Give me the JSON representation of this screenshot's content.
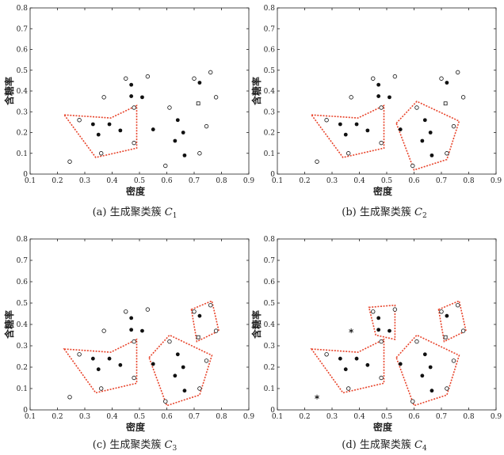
{
  "chart_data": [
    {
      "type": "scatter",
      "caption_prefix": "(a) 生成聚类簇",
      "caption_var": "C",
      "caption_sub": "1",
      "xlabel": "密度",
      "ylabel": "含糖率",
      "xlim": [
        0.1,
        0.9
      ],
      "ylim": [
        0,
        0.8
      ],
      "xticks": [
        "0.1",
        "0.2",
        "0.3",
        "0.4",
        "0.5",
        "0.6",
        "0.7",
        "0.8",
        "0.9"
      ],
      "yticks": [
        "0",
        "0.1",
        "0.2",
        "0.3",
        "0.4",
        "0.5",
        "0.6",
        "0.7",
        "0.8"
      ],
      "grid": false,
      "open_points": [
        [
          0.245,
          0.06
        ],
        [
          0.28,
          0.26
        ],
        [
          0.36,
          0.1
        ],
        [
          0.37,
          0.37
        ],
        [
          0.45,
          0.46
        ],
        [
          0.48,
          0.15
        ],
        [
          0.48,
          0.32
        ],
        [
          0.53,
          0.47
        ],
        [
          0.595,
          0.04
        ],
        [
          0.61,
          0.32
        ],
        [
          0.7,
          0.46
        ],
        [
          0.72,
          0.1
        ],
        [
          0.745,
          0.23
        ],
        [
          0.76,
          0.49
        ],
        [
          0.78,
          0.37
        ]
      ],
      "filled_points": [
        [
          0.33,
          0.24
        ],
        [
          0.35,
          0.19
        ],
        [
          0.39,
          0.24
        ],
        [
          0.43,
          0.21
        ],
        [
          0.47,
          0.43
        ],
        [
          0.47,
          0.375
        ],
        [
          0.51,
          0.37
        ],
        [
          0.55,
          0.215
        ],
        [
          0.64,
          0.26
        ],
        [
          0.63,
          0.16
        ],
        [
          0.66,
          0.2
        ],
        [
          0.665,
          0.09
        ],
        [
          0.72,
          0.44
        ]
      ],
      "square_points": [
        [
          0.715,
          0.34
        ]
      ],
      "star_points": [],
      "clusters": [
        [
          [
            0.225,
            0.285
          ],
          [
            0.395,
            0.27
          ],
          [
            0.49,
            0.33
          ],
          [
            0.49,
            0.125
          ],
          [
            0.34,
            0.08
          ]
        ]
      ]
    },
    {
      "type": "scatter",
      "caption_prefix": "(b) 生成聚类簇",
      "caption_var": "C",
      "caption_sub": "2",
      "xlabel": "密度",
      "ylabel": "含糖率",
      "xlim": [
        0.1,
        0.9
      ],
      "ylim": [
        0,
        0.8
      ],
      "xticks": [
        "0.1",
        "0.2",
        "0.3",
        "0.4",
        "0.5",
        "0.6",
        "0.7",
        "0.8",
        "0.9"
      ],
      "yticks": [
        "0",
        "0.1",
        "0.2",
        "0.3",
        "0.4",
        "0.5",
        "0.6",
        "0.7",
        "0.8"
      ],
      "grid": false,
      "open_points": [
        [
          0.245,
          0.06
        ],
        [
          0.28,
          0.26
        ],
        [
          0.36,
          0.1
        ],
        [
          0.37,
          0.37
        ],
        [
          0.45,
          0.46
        ],
        [
          0.48,
          0.15
        ],
        [
          0.48,
          0.32
        ],
        [
          0.53,
          0.47
        ],
        [
          0.595,
          0.04
        ],
        [
          0.61,
          0.32
        ],
        [
          0.7,
          0.46
        ],
        [
          0.72,
          0.1
        ],
        [
          0.745,
          0.23
        ],
        [
          0.76,
          0.49
        ],
        [
          0.78,
          0.37
        ]
      ],
      "filled_points": [
        [
          0.33,
          0.24
        ],
        [
          0.35,
          0.19
        ],
        [
          0.39,
          0.24
        ],
        [
          0.43,
          0.21
        ],
        [
          0.47,
          0.43
        ],
        [
          0.47,
          0.375
        ],
        [
          0.51,
          0.37
        ],
        [
          0.55,
          0.215
        ],
        [
          0.64,
          0.26
        ],
        [
          0.63,
          0.16
        ],
        [
          0.66,
          0.2
        ],
        [
          0.665,
          0.09
        ],
        [
          0.72,
          0.44
        ]
      ],
      "square_points": [
        [
          0.715,
          0.34
        ]
      ],
      "star_points": [],
      "clusters": [
        [
          [
            0.225,
            0.285
          ],
          [
            0.395,
            0.27
          ],
          [
            0.49,
            0.33
          ],
          [
            0.49,
            0.125
          ],
          [
            0.34,
            0.08
          ]
        ],
        [
          [
            0.535,
            0.245
          ],
          [
            0.61,
            0.35
          ],
          [
            0.765,
            0.255
          ],
          [
            0.72,
            0.07
          ],
          [
            0.6,
            0.02
          ]
        ]
      ]
    },
    {
      "type": "scatter",
      "caption_prefix": "(c) 生成聚类簇",
      "caption_var": "C",
      "caption_sub": "3",
      "xlabel": "密度",
      "ylabel": "含糖率",
      "xlim": [
        0.1,
        0.9
      ],
      "ylim": [
        0,
        0.8
      ],
      "xticks": [
        "0.1",
        "0.2",
        "0.3",
        "0.4",
        "0.5",
        "0.6",
        "0.7",
        "0.8",
        "0.9"
      ],
      "yticks": [
        "0",
        "0.1",
        "0.2",
        "0.3",
        "0.4",
        "0.5",
        "0.6",
        "0.7",
        "0.8"
      ],
      "grid": false,
      "open_points": [
        [
          0.245,
          0.06
        ],
        [
          0.28,
          0.26
        ],
        [
          0.36,
          0.1
        ],
        [
          0.37,
          0.37
        ],
        [
          0.45,
          0.46
        ],
        [
          0.48,
          0.15
        ],
        [
          0.48,
          0.32
        ],
        [
          0.53,
          0.47
        ],
        [
          0.595,
          0.04
        ],
        [
          0.61,
          0.32
        ],
        [
          0.7,
          0.46
        ],
        [
          0.72,
          0.1
        ],
        [
          0.745,
          0.23
        ],
        [
          0.76,
          0.49
        ],
        [
          0.78,
          0.37
        ]
      ],
      "filled_points": [
        [
          0.33,
          0.24
        ],
        [
          0.35,
          0.19
        ],
        [
          0.39,
          0.24
        ],
        [
          0.43,
          0.21
        ],
        [
          0.47,
          0.43
        ],
        [
          0.47,
          0.375
        ],
        [
          0.51,
          0.37
        ],
        [
          0.55,
          0.215
        ],
        [
          0.64,
          0.26
        ],
        [
          0.63,
          0.16
        ],
        [
          0.66,
          0.2
        ],
        [
          0.665,
          0.09
        ],
        [
          0.72,
          0.44
        ]
      ],
      "square_points": [
        [
          0.715,
          0.34
        ]
      ],
      "star_points": [],
      "clusters": [
        [
          [
            0.225,
            0.285
          ],
          [
            0.395,
            0.27
          ],
          [
            0.49,
            0.33
          ],
          [
            0.49,
            0.125
          ],
          [
            0.34,
            0.08
          ]
        ],
        [
          [
            0.535,
            0.245
          ],
          [
            0.61,
            0.35
          ],
          [
            0.765,
            0.255
          ],
          [
            0.72,
            0.07
          ],
          [
            0.6,
            0.02
          ]
        ],
        [
          [
            0.69,
            0.47
          ],
          [
            0.765,
            0.51
          ],
          [
            0.79,
            0.37
          ],
          [
            0.71,
            0.32
          ]
        ]
      ]
    },
    {
      "type": "scatter",
      "caption_prefix": "(d) 生成聚类簇",
      "caption_var": "C",
      "caption_sub": "4",
      "xlabel": "密度",
      "ylabel": "含糖率",
      "xlim": [
        0.1,
        0.9
      ],
      "ylim": [
        0,
        0.8
      ],
      "xticks": [
        "0.1",
        "0.2",
        "0.3",
        "0.4",
        "0.5",
        "0.6",
        "0.7",
        "0.8",
        "0.9"
      ],
      "yticks": [
        "0",
        "0.1",
        "0.2",
        "0.3",
        "0.4",
        "0.5",
        "0.6",
        "0.7",
        "0.8"
      ],
      "grid": false,
      "open_points": [
        [
          0.28,
          0.26
        ],
        [
          0.36,
          0.1
        ],
        [
          0.45,
          0.46
        ],
        [
          0.48,
          0.15
        ],
        [
          0.48,
          0.32
        ],
        [
          0.53,
          0.47
        ],
        [
          0.595,
          0.04
        ],
        [
          0.61,
          0.32
        ],
        [
          0.7,
          0.46
        ],
        [
          0.72,
          0.1
        ],
        [
          0.745,
          0.23
        ],
        [
          0.76,
          0.49
        ],
        [
          0.78,
          0.37
        ]
      ],
      "filled_points": [
        [
          0.33,
          0.24
        ],
        [
          0.35,
          0.19
        ],
        [
          0.39,
          0.24
        ],
        [
          0.43,
          0.21
        ],
        [
          0.47,
          0.43
        ],
        [
          0.47,
          0.375
        ],
        [
          0.51,
          0.37
        ],
        [
          0.55,
          0.215
        ],
        [
          0.64,
          0.26
        ],
        [
          0.63,
          0.16
        ],
        [
          0.66,
          0.2
        ],
        [
          0.665,
          0.09
        ],
        [
          0.72,
          0.44
        ]
      ],
      "square_points": [
        [
          0.715,
          0.34
        ]
      ],
      "star_points": [
        [
          0.245,
          0.06
        ],
        [
          0.37,
          0.37
        ]
      ],
      "clusters": [
        [
          [
            0.225,
            0.285
          ],
          [
            0.395,
            0.27
          ],
          [
            0.49,
            0.33
          ],
          [
            0.49,
            0.125
          ],
          [
            0.34,
            0.08
          ]
        ],
        [
          [
            0.535,
            0.245
          ],
          [
            0.61,
            0.35
          ],
          [
            0.765,
            0.255
          ],
          [
            0.72,
            0.07
          ],
          [
            0.6,
            0.02
          ]
        ],
        [
          [
            0.69,
            0.47
          ],
          [
            0.765,
            0.51
          ],
          [
            0.79,
            0.37
          ],
          [
            0.71,
            0.32
          ]
        ],
        [
          [
            0.435,
            0.48
          ],
          [
            0.53,
            0.49
          ],
          [
            0.53,
            0.33
          ],
          [
            0.46,
            0.35
          ]
        ]
      ]
    }
  ],
  "style": {
    "cluster_color": "#e8442b",
    "point_color": "#111111",
    "axis_color": "#222222"
  }
}
